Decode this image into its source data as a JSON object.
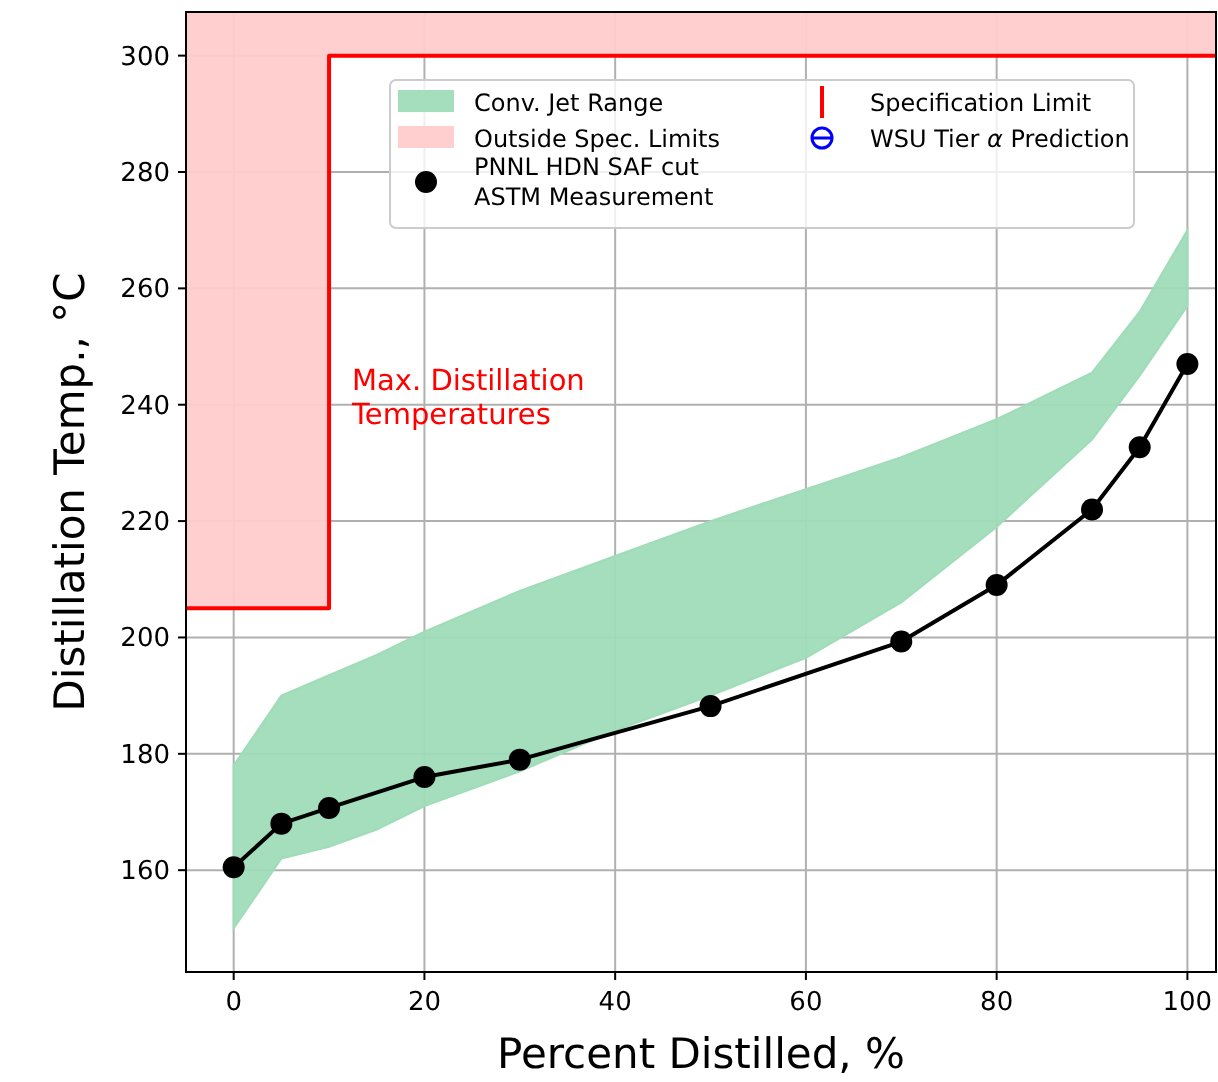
{
  "chart_data": {
    "type": "line",
    "xlabel": "Percent Distilled, %",
    "ylabel": "Distillation Temp., °C",
    "xlim": [
      -5,
      103
    ],
    "ylim": [
      142.5,
      307.5
    ],
    "xticks": [
      0,
      20,
      40,
      60,
      80,
      100
    ],
    "yticks": [
      160,
      180,
      200,
      220,
      240,
      260,
      280,
      300
    ],
    "grid": true,
    "legend": "top right",
    "series": [
      {
        "name": "Conv. Jet Range",
        "type": "area",
        "color": "#9fdcb8",
        "x": [
          0,
          5,
          10,
          15,
          20,
          30,
          40,
          50,
          60,
          70,
          80,
          85,
          90,
          95,
          100
        ],
        "values": [
          null,
          null,
          null,
          null,
          null,
          null,
          null,
          null,
          null,
          null,
          null,
          null,
          null,
          null,
          null
        ],
        "upper": [
          178,
          190,
          193.5,
          197,
          201,
          208,
          214,
          220,
          225.5,
          231,
          237.5,
          241.5,
          245.5,
          256,
          270
        ],
        "lower": [
          150,
          162,
          164,
          167,
          171,
          177,
          184,
          190,
          196.5,
          206,
          219,
          226.5,
          234,
          245,
          257
        ]
      },
      {
        "name": "Outside Spec. Limits",
        "type": "area",
        "color": "#ffcccc",
        "x": [
          -5,
          10,
          10,
          103
        ],
        "values": [
          null,
          null,
          null,
          null
        ],
        "upper": [
          307.5,
          307.5,
          307.5,
          307.5
        ],
        "lower": [
          205,
          205,
          300,
          300
        ]
      },
      {
        "name": "PNNL HDN SAF cut\nASTM Measurement",
        "color": "#000000",
        "marker": "circle",
        "x": [
          0,
          5,
          10,
          20,
          30,
          50,
          70,
          80,
          90,
          95,
          100
        ],
        "values": [
          160.5,
          168,
          170.7,
          176,
          179,
          188.2,
          199.3,
          209,
          222,
          232.7,
          247
        ]
      },
      {
        "name": "Specification Limit",
        "color": "#ff0000",
        "marker": "none",
        "x": [
          -5,
          10,
          10,
          103
        ],
        "values": [
          205,
          205,
          300,
          300
        ]
      },
      {
        "name": "WSU Tier α Prediction",
        "color": "#0000ff",
        "marker": "circle"
      }
    ],
    "annotations": [
      "Max. Distillation\nTemperatures"
    ]
  }
}
